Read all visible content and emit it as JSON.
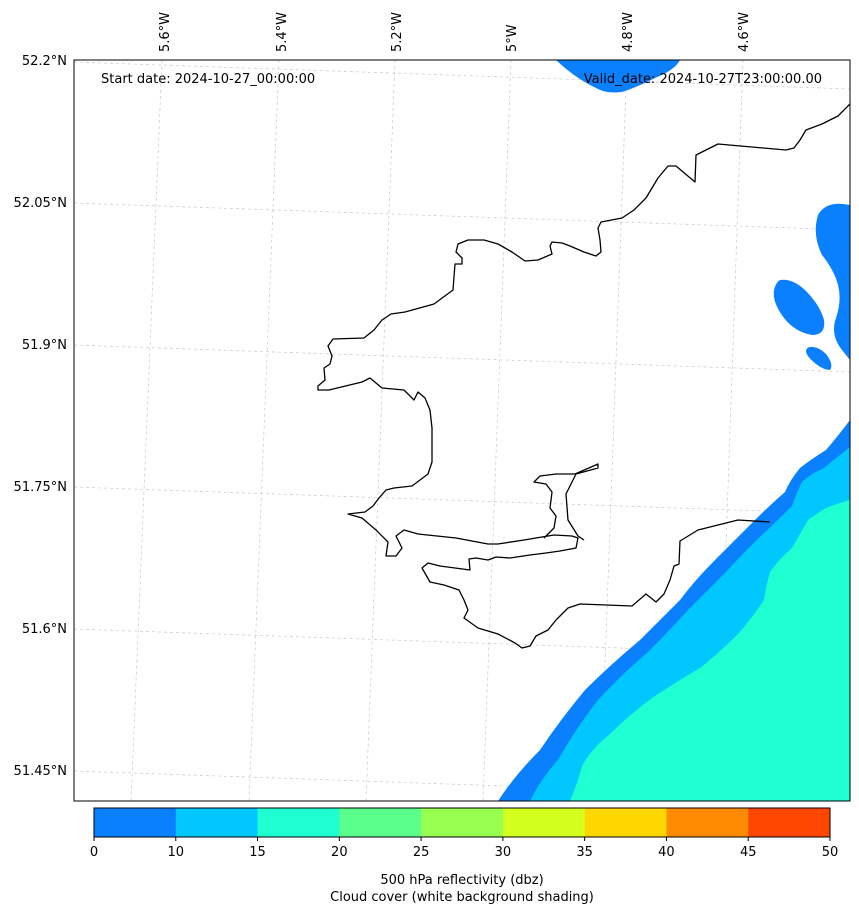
{
  "header": {
    "start_date": "Start date: 2024-10-27_00:00:00",
    "valid_date": "Valid_date: 2024-10-27T23:00:00.00"
  },
  "axes": {
    "lon_labels": [
      "5.6°W",
      "5.4°W",
      "5.2°W",
      "5°W",
      "4.8°W",
      "4.6°W"
    ],
    "lat_labels": [
      "52.2°N",
      "52.05°N",
      "51.9°N",
      "51.75°N",
      "51.6°N",
      "51.45°N"
    ]
  },
  "colorbar": {
    "ticks": [
      "0",
      "10",
      "15",
      "20",
      "25",
      "30",
      "35",
      "40",
      "45",
      "50"
    ],
    "colors": [
      "#0a80ff",
      "#00c8ff",
      "#1effd2",
      "#5aff8c",
      "#96ff50",
      "#d2ff1e",
      "#ffd700",
      "#ff8c00",
      "#ff4600"
    ],
    "label_line1": "500 hPa reflectivity (dbz)",
    "label_line2": "Cloud cover (white background shading)"
  }
}
